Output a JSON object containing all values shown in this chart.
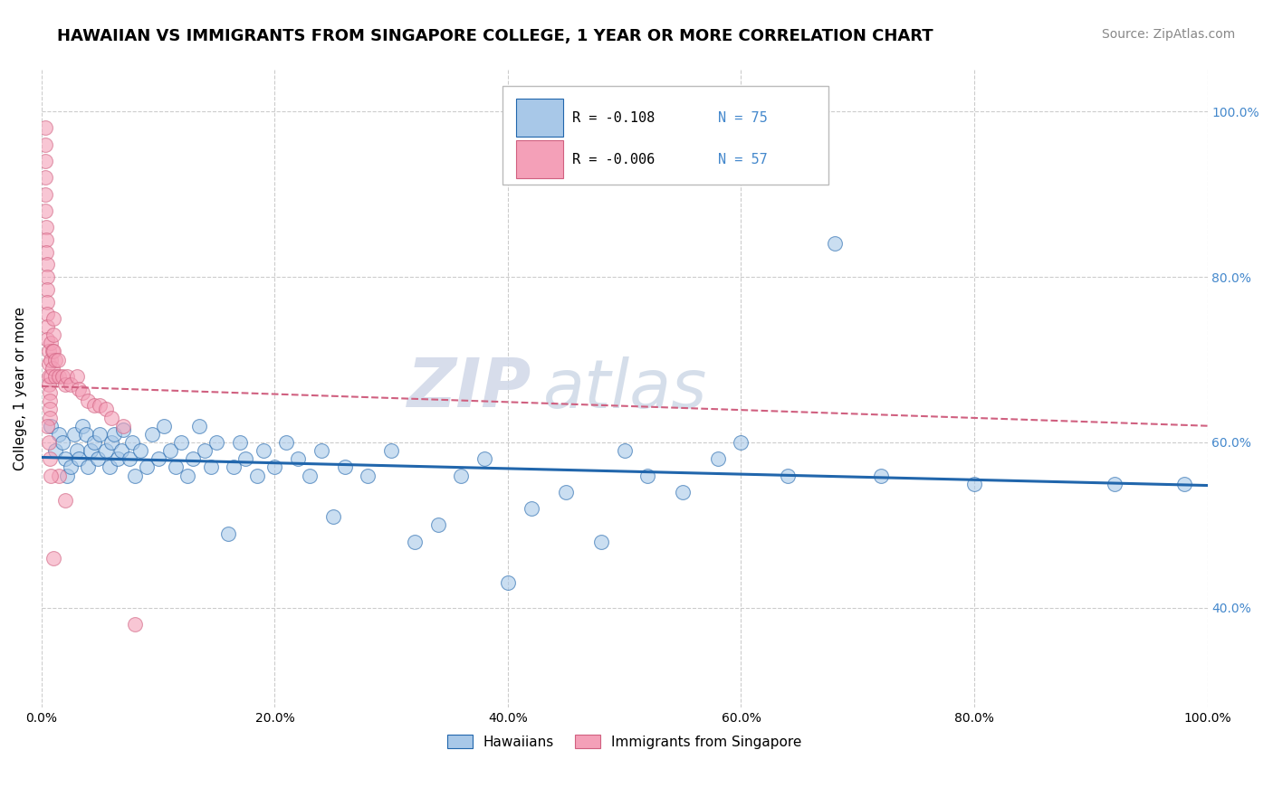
{
  "title": "HAWAIIAN VS IMMIGRANTS FROM SINGAPORE COLLEGE, 1 YEAR OR MORE CORRELATION CHART",
  "source_text": "Source: ZipAtlas.com",
  "ylabel": "College, 1 year or more",
  "xlabel": "",
  "xlim": [
    0.0,
    1.0
  ],
  "ylim": [
    0.28,
    1.05
  ],
  "xtick_positions": [
    0.0,
    0.2,
    0.4,
    0.6,
    0.8,
    1.0
  ],
  "xtick_labels": [
    "0.0%",
    "20.0%",
    "40.0%",
    "60.0%",
    "80.0%",
    "100.0%"
  ],
  "ytick_positions": [
    0.4,
    0.6,
    0.8,
    1.0
  ],
  "ytick_labels": [
    "40.0%",
    "60.0%",
    "80.0%",
    "100.0%"
  ],
  "watermark_zip": "ZIP",
  "watermark_atlas": "atlas",
  "legend_r1": "R = -0.108",
  "legend_n1": "N = 75",
  "legend_r2": "R = -0.006",
  "legend_n2": "N = 57",
  "color_blue": "#a8c8e8",
  "color_pink": "#f4a0b8",
  "color_blue_line": "#2166ac",
  "color_pink_line": "#d06080",
  "color_grid": "#cccccc",
  "hawaiians_x": [
    0.008,
    0.012,
    0.015,
    0.018,
    0.02,
    0.022,
    0.025,
    0.028,
    0.03,
    0.032,
    0.035,
    0.038,
    0.04,
    0.042,
    0.045,
    0.048,
    0.05,
    0.055,
    0.058,
    0.06,
    0.062,
    0.065,
    0.068,
    0.07,
    0.075,
    0.078,
    0.08,
    0.085,
    0.09,
    0.095,
    0.1,
    0.105,
    0.11,
    0.115,
    0.12,
    0.125,
    0.13,
    0.135,
    0.14,
    0.145,
    0.15,
    0.16,
    0.165,
    0.17,
    0.175,
    0.185,
    0.19,
    0.2,
    0.21,
    0.22,
    0.23,
    0.24,
    0.25,
    0.26,
    0.28,
    0.3,
    0.32,
    0.34,
    0.36,
    0.38,
    0.4,
    0.42,
    0.45,
    0.48,
    0.5,
    0.52,
    0.55,
    0.58,
    0.6,
    0.64,
    0.68,
    0.72,
    0.8,
    0.92,
    0.98
  ],
  "hawaiians_y": [
    0.62,
    0.59,
    0.61,
    0.6,
    0.58,
    0.56,
    0.57,
    0.61,
    0.59,
    0.58,
    0.62,
    0.61,
    0.57,
    0.59,
    0.6,
    0.58,
    0.61,
    0.59,
    0.57,
    0.6,
    0.61,
    0.58,
    0.59,
    0.615,
    0.58,
    0.6,
    0.56,
    0.59,
    0.57,
    0.61,
    0.58,
    0.62,
    0.59,
    0.57,
    0.6,
    0.56,
    0.58,
    0.62,
    0.59,
    0.57,
    0.6,
    0.49,
    0.57,
    0.6,
    0.58,
    0.56,
    0.59,
    0.57,
    0.6,
    0.58,
    0.56,
    0.59,
    0.51,
    0.57,
    0.56,
    0.59,
    0.48,
    0.5,
    0.56,
    0.58,
    0.43,
    0.52,
    0.54,
    0.48,
    0.59,
    0.56,
    0.54,
    0.58,
    0.6,
    0.56,
    0.84,
    0.56,
    0.55,
    0.55,
    0.55
  ],
  "singapore_x": [
    0.003,
    0.003,
    0.003,
    0.003,
    0.003,
    0.003,
    0.004,
    0.004,
    0.004,
    0.005,
    0.005,
    0.005,
    0.005,
    0.005,
    0.005,
    0.005,
    0.006,
    0.006,
    0.006,
    0.006,
    0.007,
    0.007,
    0.007,
    0.007,
    0.008,
    0.008,
    0.008,
    0.009,
    0.009,
    0.01,
    0.01,
    0.01,
    0.012,
    0.012,
    0.014,
    0.015,
    0.018,
    0.02,
    0.022,
    0.025,
    0.03,
    0.032,
    0.035,
    0.04,
    0.045,
    0.05,
    0.055,
    0.06,
    0.07,
    0.08,
    0.02,
    0.01,
    0.015,
    0.005,
    0.006,
    0.007,
    0.008
  ],
  "singapore_y": [
    0.98,
    0.96,
    0.94,
    0.92,
    0.9,
    0.88,
    0.86,
    0.845,
    0.83,
    0.815,
    0.8,
    0.785,
    0.77,
    0.755,
    0.74,
    0.725,
    0.71,
    0.695,
    0.68,
    0.67,
    0.66,
    0.65,
    0.64,
    0.63,
    0.72,
    0.7,
    0.68,
    0.71,
    0.69,
    0.75,
    0.73,
    0.71,
    0.7,
    0.68,
    0.7,
    0.68,
    0.68,
    0.67,
    0.68,
    0.67,
    0.68,
    0.665,
    0.66,
    0.65,
    0.645,
    0.645,
    0.64,
    0.63,
    0.62,
    0.38,
    0.53,
    0.46,
    0.56,
    0.62,
    0.6,
    0.58,
    0.56
  ],
  "blue_trendline_x": [
    0.0,
    1.0
  ],
  "blue_trendline_y": [
    0.582,
    0.548
  ],
  "pink_trendline_x": [
    0.0,
    1.0
  ],
  "pink_trendline_y": [
    0.668,
    0.62
  ],
  "title_fontsize": 13,
  "label_fontsize": 11,
  "tick_fontsize": 10,
  "source_fontsize": 10,
  "legend_fontsize": 11
}
